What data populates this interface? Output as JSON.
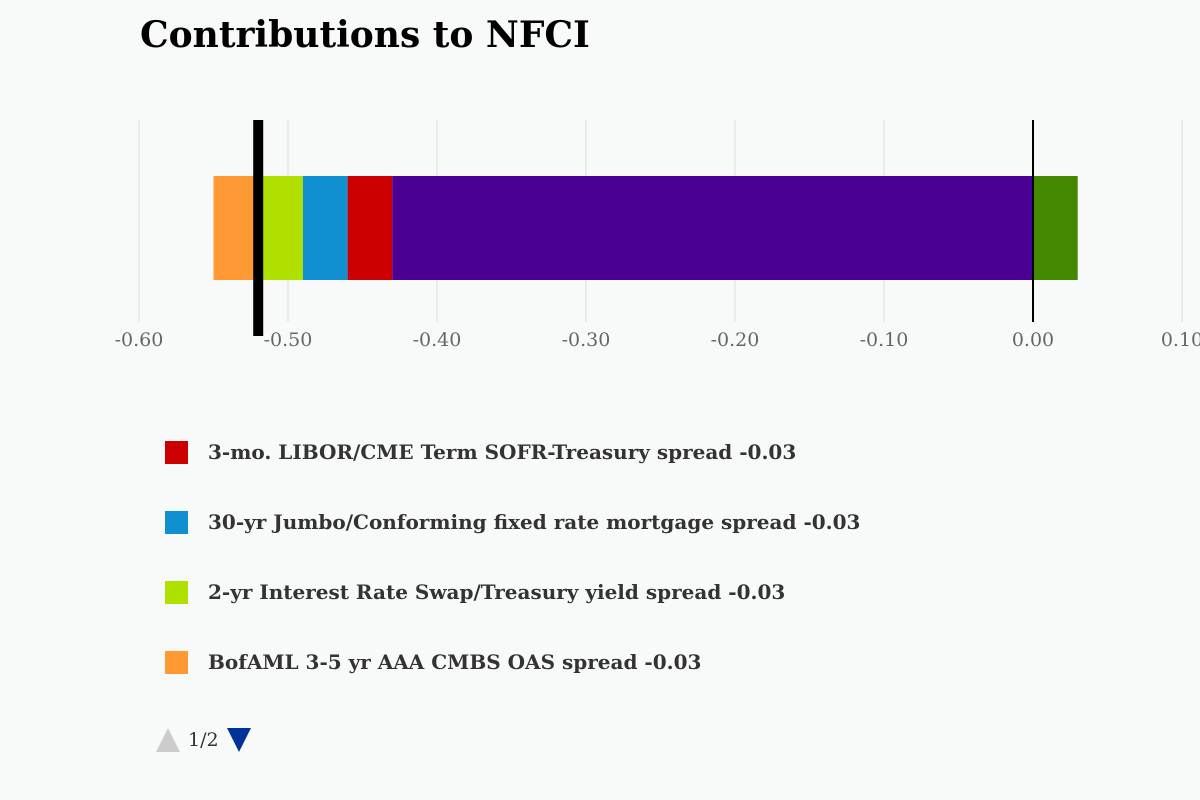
{
  "title": "Contributions to NFCI",
  "chart_data": {
    "type": "bar",
    "orientation": "horizontal-stacked",
    "title": "Contributions to NFCI",
    "xlim": [
      -0.6,
      0.1
    ],
    "xticks": [
      "-0.60",
      "-0.50",
      "-0.40",
      "-0.30",
      "-0.20",
      "-0.10",
      "0.00",
      "0.10"
    ],
    "xtick_values": [
      -0.6,
      -0.5,
      -0.4,
      -0.3,
      -0.2,
      -0.1,
      0.0,
      0.1
    ],
    "grid": true,
    "total_marker": -0.52,
    "segments": [
      {
        "from": -0.55,
        "to": -0.52,
        "color": "#ff9933"
      },
      {
        "from": -0.52,
        "to": -0.49,
        "color": "#b0e000"
      },
      {
        "from": -0.49,
        "to": -0.46,
        "color": "#1090d0"
      },
      {
        "from": -0.46,
        "to": -0.43,
        "color": "#cc0000"
      },
      {
        "from": -0.43,
        "to": 0.0,
        "color": "#4a0092"
      },
      {
        "from": 0.0,
        "to": 0.03,
        "color": "#448800"
      }
    ]
  },
  "legend": {
    "items": [
      {
        "label": "3-mo. LIBOR/CME Term SOFR-Treasury spread -0.03",
        "color": "#cc0000"
      },
      {
        "label": "30-yr Jumbo/Conforming fixed rate mortgage spread -0.03",
        "color": "#1090d0"
      },
      {
        "label": "2-yr Interest Rate Swap/Treasury yield spread -0.03",
        "color": "#b0e000"
      },
      {
        "label": "BofAML 3-5 yr AAA CMBS OAS spread -0.03",
        "color": "#ff9933"
      }
    ]
  },
  "pager": {
    "text": "1/2"
  }
}
